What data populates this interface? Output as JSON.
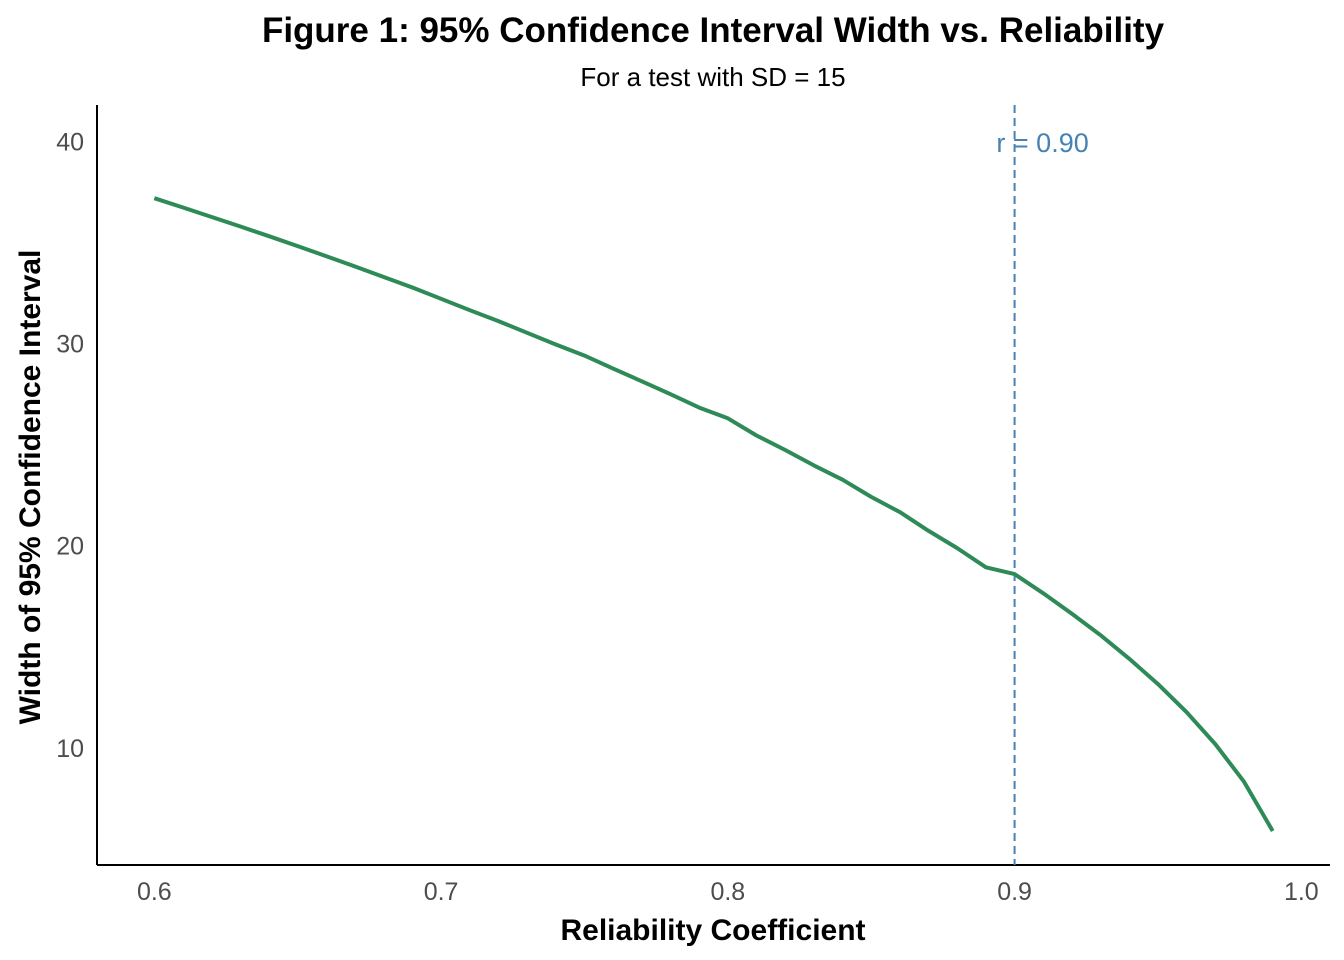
{
  "chart_data": {
    "type": "line",
    "title": "Figure 1: 95% Confidence Interval Width vs. Reliability",
    "subtitle": "For a test with SD = 15",
    "xlabel": "Reliability Coefficient",
    "ylabel": "Width of 95% Confidence Interval",
    "xlim": [
      0.58,
      1.01
    ],
    "ylim": [
      4.2,
      41.8
    ],
    "xticks": [
      0.6,
      0.7,
      0.8,
      0.9,
      1.0
    ],
    "xtick_labels": [
      "0.6",
      "0.7",
      "0.8",
      "0.9",
      "1.0"
    ],
    "yticks": [
      10,
      20,
      30,
      40
    ],
    "ytick_labels": [
      "10",
      "20",
      "30",
      "40"
    ],
    "grid": false,
    "legend": "none",
    "series": [
      {
        "color": "#2e8b57",
        "x": [
          0.6,
          0.61,
          0.62,
          0.63,
          0.64,
          0.65,
          0.66,
          0.67,
          0.68,
          0.69,
          0.7,
          0.71,
          0.72,
          0.73,
          0.74,
          0.75,
          0.76,
          0.77,
          0.78,
          0.79,
          0.8,
          0.81,
          0.82,
          0.83,
          0.84,
          0.85,
          0.86,
          0.87,
          0.88,
          0.89,
          0.9,
          0.91,
          0.92,
          0.93,
          0.94,
          0.95,
          0.96,
          0.97,
          0.98,
          0.99
        ],
        "y": [
          37.19,
          36.73,
          36.26,
          35.79,
          35.31,
          34.82,
          34.32,
          33.81,
          33.29,
          32.77,
          32.21,
          31.65,
          31.11,
          30.53,
          29.95,
          29.4,
          28.76,
          28.13,
          27.49,
          26.83,
          26.3,
          25.45,
          24.73,
          23.97,
          23.26,
          22.41,
          21.66,
          20.73,
          19.88,
          18.93,
          18.59,
          17.64,
          16.63,
          15.57,
          14.4,
          13.15,
          11.76,
          10.18,
          8.32,
          5.88
        ]
      }
    ],
    "annotations": [
      {
        "type": "vline",
        "x": 0.9,
        "color": "#4682b4",
        "style": "dashed",
        "label": "r = 0.90"
      }
    ]
  }
}
